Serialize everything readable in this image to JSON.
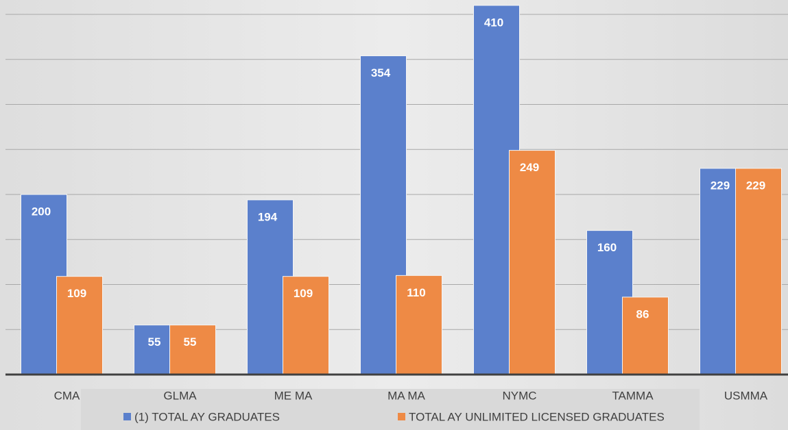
{
  "chart_data": {
    "type": "bar",
    "categories": [
      "CMA",
      "GLMA",
      "ME MA",
      "MA MA",
      "NYMC",
      "TAMMA",
      "USMMA"
    ],
    "series": [
      {
        "name": "(1) TOTAL AY GRADUATES",
        "color": "#5b80cc",
        "values": [
          200,
          55,
          194,
          354,
          410,
          160,
          229
        ]
      },
      {
        "name": "TOTAL AY UNLIMITED LICENSED GRADUATES",
        "color": "#ee8a45",
        "values": [
          109,
          55,
          109,
          110,
          249,
          86,
          229
        ]
      }
    ],
    "ylim": [
      0,
      416
    ],
    "yticks": [
      0,
      50,
      100,
      150,
      200,
      250,
      300,
      350,
      400
    ],
    "grid": true
  }
}
